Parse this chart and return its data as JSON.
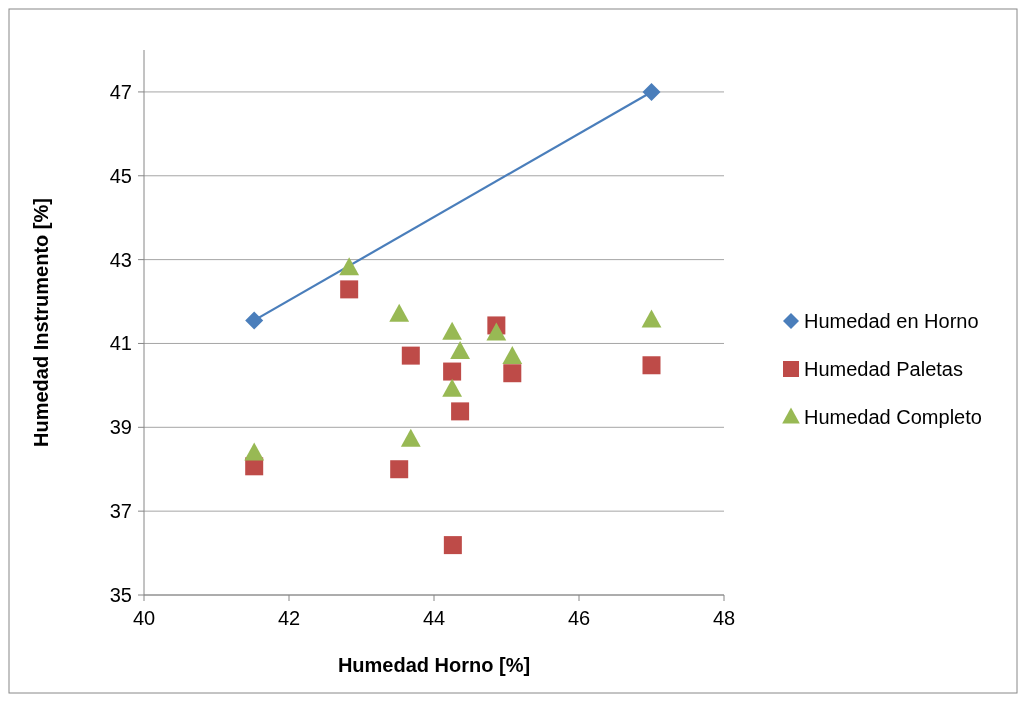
{
  "chart_data": {
    "type": "scatter",
    "xlabel": "Humedad Horno [%]",
    "ylabel": "Humedad Instrumento [%]",
    "xlim": [
      40,
      48
    ],
    "xticks": [
      40,
      42,
      44,
      46,
      48
    ],
    "ylim": [
      35,
      48
    ],
    "yticks": [
      35,
      37,
      39,
      41,
      43,
      45,
      47
    ],
    "grid": "y",
    "legend": "right",
    "series": [
      {
        "name": "Humedad en Horno",
        "type": "line",
        "marker": "diamond",
        "color": "#4a7ebb",
        "x": [
          41.52,
          47
        ],
        "values": [
          41.55,
          47
        ]
      },
      {
        "name": "Humedad Paletas",
        "marker": "square",
        "color": "#be4b48",
        "x": [
          41.52,
          42.83,
          43.52,
          43.68,
          44.25,
          44.36,
          44.26,
          44.86,
          45.08,
          47
        ],
        "values": [
          38.07,
          42.29,
          38.0,
          40.71,
          40.33,
          39.38,
          36.19,
          41.43,
          40.29,
          40.48
        ]
      },
      {
        "name": "Humedad Completo",
        "marker": "triangle",
        "color": "#98b954",
        "x": [
          41.52,
          42.83,
          43.52,
          43.68,
          44.25,
          44.36,
          44.25,
          44.86,
          45.08,
          47
        ],
        "values": [
          38.38,
          42.8,
          41.69,
          38.71,
          41.26,
          40.8,
          39.9,
          41.24,
          40.68,
          41.55
        ]
      }
    ]
  }
}
